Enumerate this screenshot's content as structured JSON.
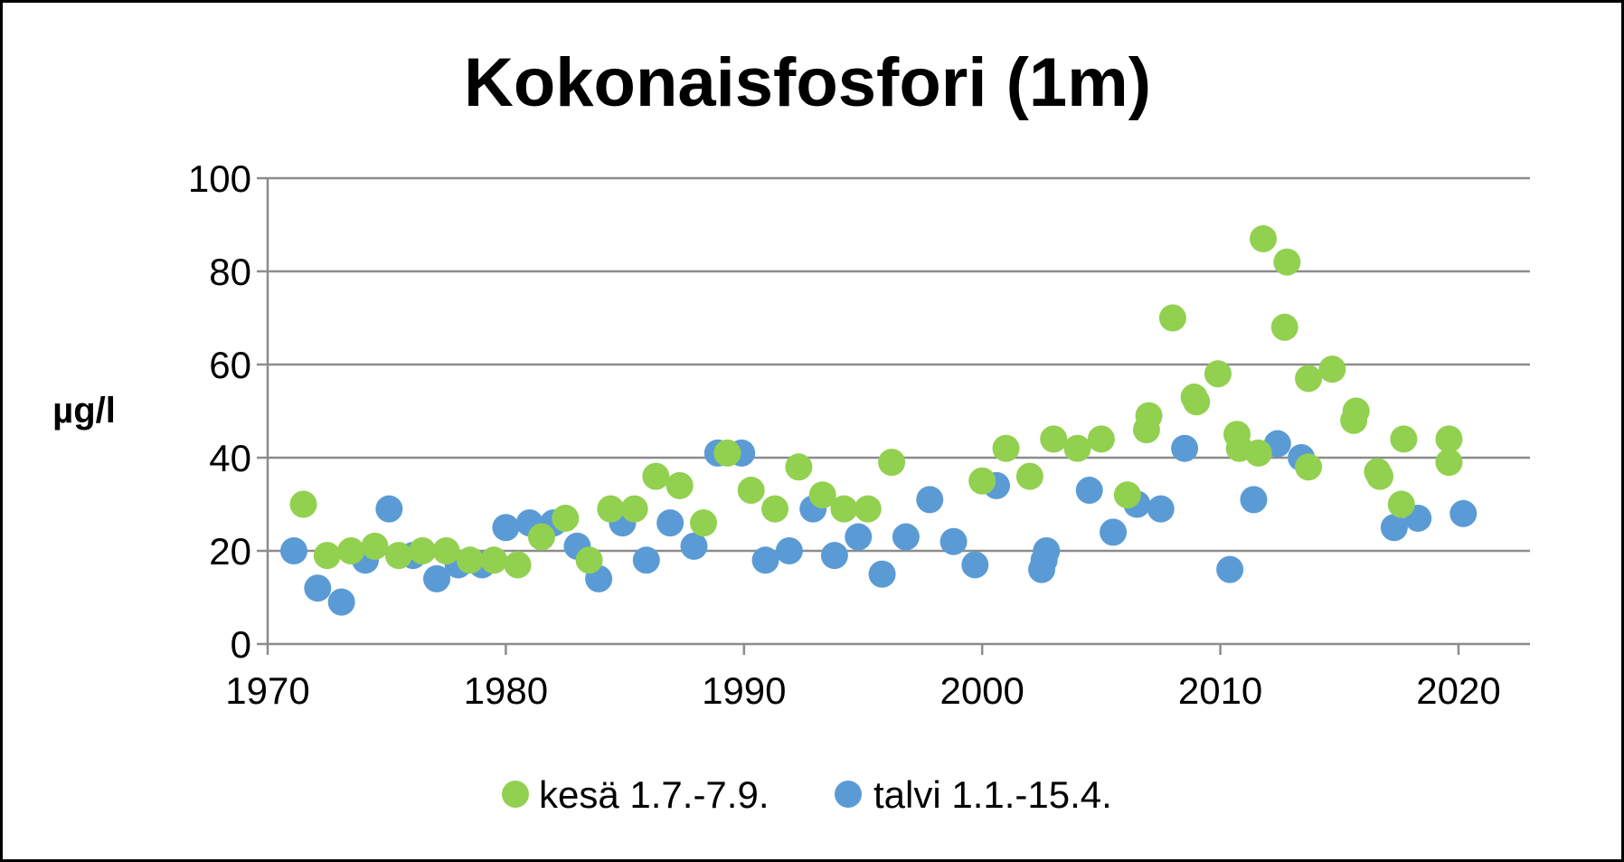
{
  "chart_data": {
    "type": "scatter",
    "title": "Kokonaisfosfori (1m)",
    "xlabel": "",
    "ylabel": "µg/l",
    "xlim": [
      1970,
      2023
    ],
    "ylim": [
      0,
      100
    ],
    "x_ticks": [
      1970,
      1980,
      1990,
      2000,
      2010,
      2020
    ],
    "y_ticks": [
      0,
      20,
      40,
      60,
      80,
      100
    ],
    "grid": "horizontal",
    "legend_position": "bottom",
    "series": [
      {
        "name": "kesä 1.7.-7.9.",
        "color": "#92d050",
        "points": [
          [
            1971.5,
            30
          ],
          [
            1972.5,
            19
          ],
          [
            1973.5,
            20
          ],
          [
            1974.5,
            21
          ],
          [
            1975.5,
            19
          ],
          [
            1976.5,
            20
          ],
          [
            1977.5,
            20
          ],
          [
            1978.5,
            18
          ],
          [
            1979.5,
            18
          ],
          [
            1980.5,
            17
          ],
          [
            1981.5,
            23
          ],
          [
            1982.5,
            27
          ],
          [
            1983.5,
            18
          ],
          [
            1984.4,
            29
          ],
          [
            1985.4,
            29
          ],
          [
            1986.3,
            36
          ],
          [
            1987.3,
            34
          ],
          [
            1988.3,
            26
          ],
          [
            1989.3,
            41
          ],
          [
            1990.3,
            33
          ],
          [
            1991.3,
            29
          ],
          [
            1992.3,
            38
          ],
          [
            1993.3,
            32
          ],
          [
            1994.2,
            29
          ],
          [
            1995.2,
            29
          ],
          [
            1996.2,
            39
          ],
          [
            2000,
            35
          ],
          [
            2001,
            42
          ],
          [
            2002,
            36
          ],
          [
            2003,
            44
          ],
          [
            2004,
            42
          ],
          [
            2005,
            44
          ],
          [
            2006.1,
            32
          ],
          [
            2006.9,
            46
          ],
          [
            2007,
            49
          ],
          [
            2008,
            70
          ],
          [
            2008.9,
            53
          ],
          [
            2009,
            52
          ],
          [
            2009.9,
            58
          ],
          [
            2010.7,
            45
          ],
          [
            2010.8,
            42
          ],
          [
            2011.6,
            41
          ],
          [
            2011.8,
            87
          ],
          [
            2012.8,
            82
          ],
          [
            2012.7,
            68
          ],
          [
            2013.7,
            57
          ],
          [
            2013.7,
            38
          ],
          [
            2014.7,
            59
          ],
          [
            2015.6,
            48
          ],
          [
            2015.7,
            50
          ],
          [
            2016.6,
            37
          ],
          [
            2016.7,
            36
          ],
          [
            2017.6,
            30
          ],
          [
            2017.7,
            44
          ],
          [
            2019.6,
            44
          ],
          [
            2019.6,
            39
          ]
        ]
      },
      {
        "name": "talvi 1.1.-15.4.",
        "color": "#5b9bd5",
        "points": [
          [
            1971.1,
            20
          ],
          [
            1972.1,
            12
          ],
          [
            1973.1,
            9
          ],
          [
            1974.1,
            18
          ],
          [
            1975.1,
            29
          ],
          [
            1976.1,
            19
          ],
          [
            1977.1,
            14
          ],
          [
            1978,
            17
          ],
          [
            1979,
            17
          ],
          [
            1980,
            25
          ],
          [
            1981,
            26
          ],
          [
            1982,
            26
          ],
          [
            1983,
            21
          ],
          [
            1983.9,
            14
          ],
          [
            1984.9,
            26
          ],
          [
            1985.9,
            18
          ],
          [
            1986.9,
            26
          ],
          [
            1987.9,
            21
          ],
          [
            1988.9,
            41
          ],
          [
            1989.9,
            41
          ],
          [
            1990.9,
            18
          ],
          [
            1991.9,
            20
          ],
          [
            1992.9,
            29
          ],
          [
            1993.8,
            19
          ],
          [
            1994.8,
            23
          ],
          [
            1995.8,
            15
          ],
          [
            1996.8,
            23
          ],
          [
            1997.8,
            31
          ],
          [
            1998.8,
            22
          ],
          [
            1999.7,
            17
          ],
          [
            2000.6,
            34
          ],
          [
            2002.5,
            16
          ],
          [
            2002.6,
            18
          ],
          [
            2002.7,
            20
          ],
          [
            2004.5,
            33
          ],
          [
            2005.5,
            24
          ],
          [
            2006.5,
            30
          ],
          [
            2007.5,
            29
          ],
          [
            2008.5,
            42
          ],
          [
            2010.4,
            16
          ],
          [
            2011.4,
            31
          ],
          [
            2012.4,
            43
          ],
          [
            2013.4,
            40
          ],
          [
            2017.3,
            25
          ],
          [
            2018.3,
            27
          ],
          [
            2020.2,
            28
          ]
        ]
      }
    ]
  }
}
